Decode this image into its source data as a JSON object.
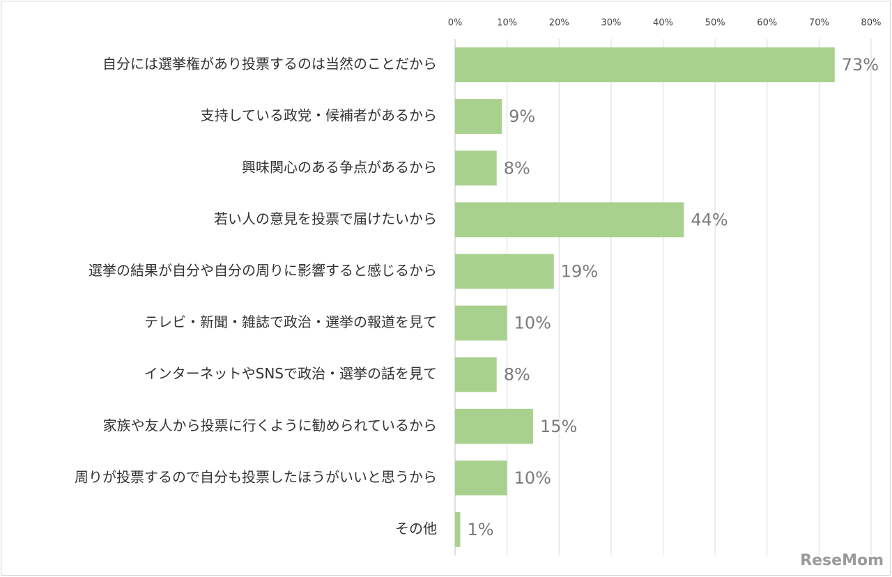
{
  "chart_data": {
    "type": "barh",
    "categories": [
      "自分には選挙権があり投票するのは当然のことだから",
      "支持している政党・候補者があるから",
      "興味関心のある争点があるから",
      "若い人の意見を投票で届けたいから",
      "選挙の結果が自分や自分の周りに影響すると感じるから",
      "テレビ・新聞・雑誌で政治・選挙の報道を見て",
      "インターネットやSNSで政治・選挙の話を見て",
      "家族や友人から投票に行くように勧められているから",
      "周りが投票するので自分も投票したほうがいいと思うから",
      "その他"
    ],
    "values": [
      73,
      9,
      8,
      44,
      19,
      10,
      8,
      15,
      10,
      1
    ],
    "value_labels": [
      "73%",
      "9%",
      "8%",
      "44%",
      "19%",
      "10%",
      "8%",
      "15%",
      "10%",
      "1%"
    ],
    "color": "#a9d18e",
    "xlim": [
      0,
      80
    ],
    "xticks": [
      {
        "value": 0,
        "label": "0%"
      },
      {
        "value": 10,
        "label": "10%"
      },
      {
        "value": 20,
        "label": "20%"
      },
      {
        "value": 30,
        "label": "30%"
      },
      {
        "value": 40,
        "label": "40%"
      },
      {
        "value": 50,
        "label": "50%"
      },
      {
        "value": 60,
        "label": "60%"
      },
      {
        "value": 70,
        "label": "70%"
      },
      {
        "value": 80,
        "label": "80%"
      }
    ],
    "grid": true
  },
  "watermark": "ReseMom"
}
